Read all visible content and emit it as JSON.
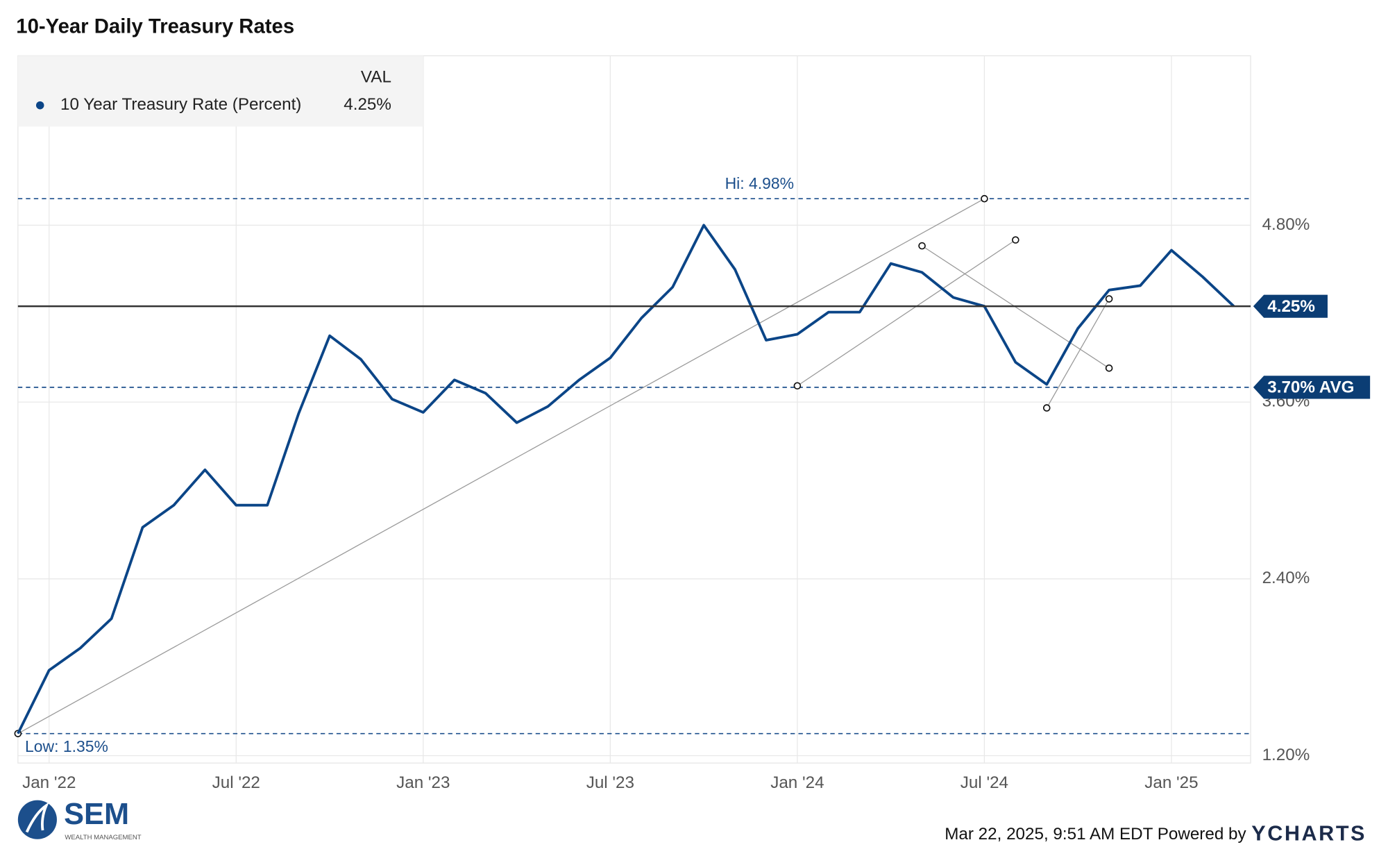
{
  "chart_data": {
    "type": "line",
    "title": "10-Year Daily Treasury Rates",
    "x": [
      "2021-12",
      "2022-01",
      "2022-02",
      "2022-03",
      "2022-04",
      "2022-05",
      "2022-06",
      "2022-07",
      "2022-08",
      "2022-09",
      "2022-10",
      "2022-11",
      "2022-12",
      "2023-01",
      "2023-02",
      "2023-03",
      "2023-04",
      "2023-05",
      "2023-06",
      "2023-07",
      "2023-08",
      "2023-09",
      "2023-10",
      "2023-11",
      "2023-12",
      "2024-01",
      "2024-02",
      "2024-03",
      "2024-04",
      "2024-05",
      "2024-06",
      "2024-07",
      "2024-08",
      "2024-09",
      "2024-10",
      "2024-11",
      "2024-12",
      "2025-01",
      "2025-02",
      "2025-03"
    ],
    "series": [
      {
        "name": "10 Year Treasury Rate (Percent)",
        "color": "#0b4587",
        "values": [
          1.35,
          1.78,
          1.93,
          2.13,
          2.75,
          2.9,
          3.14,
          2.9,
          2.9,
          3.52,
          4.05,
          3.89,
          3.62,
          3.53,
          3.75,
          3.66,
          3.46,
          3.57,
          3.75,
          3.9,
          4.17,
          4.38,
          4.8,
          4.5,
          4.02,
          4.06,
          4.21,
          4.21,
          4.54,
          4.48,
          4.31,
          4.25,
          3.87,
          3.72,
          4.1,
          4.36,
          4.39,
          4.63,
          4.45,
          4.25
        ],
        "last_value": 4.25,
        "last_value_label": "4.25%"
      }
    ],
    "legend_header": "VAL",
    "reference_lines": [
      {
        "value": 4.98,
        "label": "Hi: 4.98%",
        "style": "dashed"
      },
      {
        "value": 1.35,
        "label": "Low: 1.35%",
        "style": "dashed"
      },
      {
        "value": 3.7,
        "label": "3.70% AVG",
        "style": "dashed"
      }
    ],
    "trend_lines": [
      {
        "x": [
          "2021-12",
          "2024-07"
        ],
        "y": [
          1.35,
          4.98
        ]
      },
      {
        "x": [
          "2024-01",
          "2024-08"
        ],
        "y": [
          3.71,
          4.7
        ]
      },
      {
        "x": [
          "2024-05",
          "2024-11"
        ],
        "y": [
          4.66,
          3.83
        ]
      },
      {
        "x": [
          "2024-09",
          "2024-11"
        ],
        "y": [
          3.56,
          4.3
        ]
      }
    ],
    "xlim": [
      "2021-12",
      "2025-03"
    ],
    "xticks": [
      {
        "value": "2022-01",
        "label": "Jan '22"
      },
      {
        "value": "2022-07",
        "label": "Jul '22"
      },
      {
        "value": "2023-01",
        "label": "Jan '23"
      },
      {
        "value": "2023-07",
        "label": "Jul '23"
      },
      {
        "value": "2024-01",
        "label": "Jan '24"
      },
      {
        "value": "2024-07",
        "label": "Jul '24"
      },
      {
        "value": "2025-01",
        "label": "Jan '25"
      }
    ],
    "ylim": [
      1.15,
      5.95
    ],
    "yticks": [
      {
        "value": 1.2,
        "label": "1.20%"
      },
      {
        "value": 2.4,
        "label": "2.40%"
      },
      {
        "value": 3.6,
        "label": "3.60%"
      },
      {
        "value": 4.8,
        "label": "4.80%"
      }
    ],
    "grid": true,
    "footer": "Mar 22, 2025, 9:51 AM EDT Powered by",
    "brand": "YCHARTS",
    "logo": {
      "name": "SEM",
      "subtitle": "WEALTH MANAGEMENT"
    }
  }
}
